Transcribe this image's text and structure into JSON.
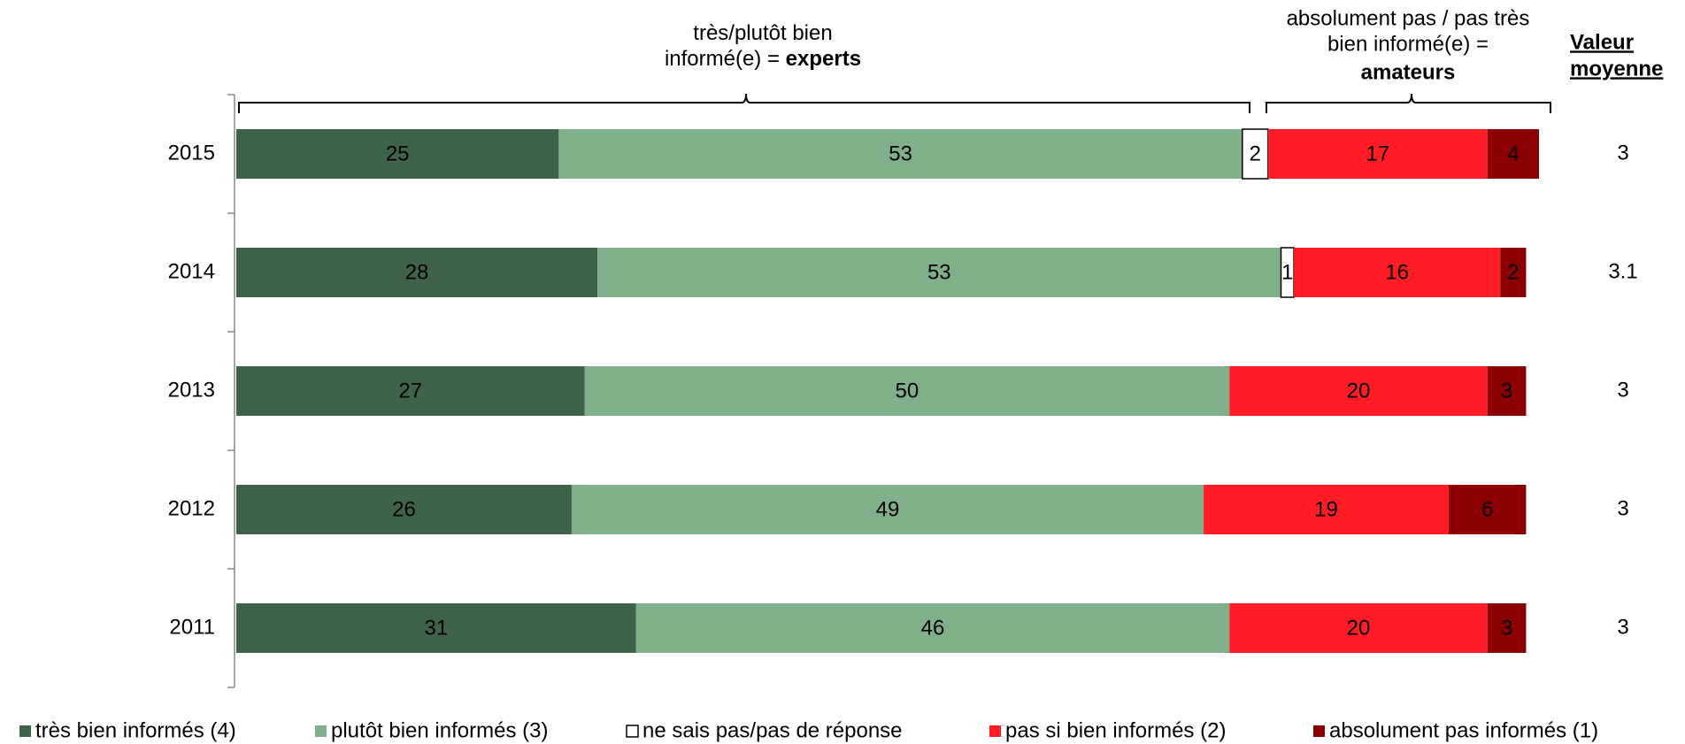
{
  "chart_data": {
    "type": "stacked-barh",
    "annotations": {
      "experts": {
        "lines": [
          "très/plutôt bien",
          "informé(e) = "
        ],
        "bold": "experts"
      },
      "amateurs": {
        "lines": [
          "absolument pas / pas très",
          "bien informé(e) ="
        ],
        "bold": "amateurs"
      }
    },
    "mean_label": [
      "Valeur",
      "moyenne"
    ],
    "categories": [
      "2015",
      "2014",
      "2013",
      "2012",
      "2011"
    ],
    "series": [
      {
        "name": "très bien informés (4)",
        "color": "#3f6348",
        "label_color": "#ffffff",
        "values": [
          25,
          28,
          27,
          26,
          31
        ]
      },
      {
        "name": "plutôt bien informés (3)",
        "color": "#80b08a",
        "label_color": "#000000",
        "values": [
          53,
          53,
          50,
          49,
          46
        ]
      },
      {
        "name": "ne sais pas/pas de réponse",
        "color": "#ffffff",
        "label_color": "#000000",
        "values": [
          2,
          1,
          null,
          null,
          null
        ]
      },
      {
        "name": "pas si bien informés (2)",
        "color": "#ff1c24",
        "label_color": "#ffffff",
        "values": [
          17,
          16,
          20,
          19,
          20
        ]
      },
      {
        "name": "absolument pas informés (1)",
        "color": "#8b0000",
        "label_color": "#ffffff",
        "values": [
          4,
          2,
          3,
          6,
          3
        ]
      }
    ],
    "mean_values": [
      3,
      3.1,
      3,
      3,
      3
    ],
    "xlim": [
      0,
      101
    ]
  }
}
